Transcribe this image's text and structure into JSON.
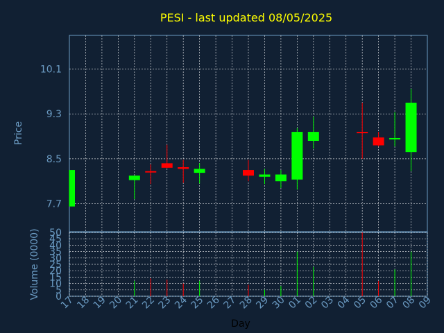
{
  "chart_data": {
    "type": "candlestick",
    "title": "PESI - last updated 08/05/2025",
    "xlabel": "Day",
    "price_panel": {
      "ylabel": "Price",
      "ylim": [
        7.2,
        10.7
      ],
      "yticks": [
        7.7,
        8.5,
        9.3,
        10.1
      ],
      "ytick_labels": [
        "7.7",
        "8.5",
        "9.3",
        "10.1"
      ]
    },
    "volume_panel": {
      "ylabel": "Volume (0000)",
      "ylim": [
        0,
        50
      ],
      "yticks": [
        0,
        5,
        10,
        15,
        20,
        25,
        30,
        35,
        40,
        45,
        50
      ],
      "ytick_labels": [
        "0",
        "5",
        "10",
        "15",
        "20",
        "25",
        "30",
        "35",
        "40",
        "45",
        "50"
      ]
    },
    "x_ticks": [
      "17",
      "18",
      "19",
      "20",
      "21",
      "22",
      "23",
      "24",
      "25",
      "26",
      "27",
      "28",
      "29",
      "30",
      "01",
      "02",
      "03",
      "04",
      "05",
      "06",
      "07",
      "08",
      "09"
    ],
    "grid": true,
    "colors": {
      "up": "#00ff00",
      "down": "#ff0000",
      "grid": "#ffffff",
      "axis_text": "#6b9bc3",
      "title": "#ffff00",
      "frame": "#6b9bc3"
    },
    "candles": [
      {
        "day": "17",
        "open": 7.65,
        "high": 8.3,
        "low": 7.65,
        "close": 8.3,
        "volume": 0
      },
      {
        "day": "21",
        "open": 8.12,
        "high": 8.2,
        "low": 7.78,
        "close": 8.2,
        "volume": 12
      },
      {
        "day": "22",
        "open": 8.28,
        "high": 8.4,
        "low": 8.05,
        "close": 8.26,
        "volume": 14
      },
      {
        "day": "23",
        "open": 8.42,
        "high": 8.75,
        "low": 8.33,
        "close": 8.34,
        "volume": 13
      },
      {
        "day": "24",
        "open": 8.35,
        "high": 8.48,
        "low": 8.07,
        "close": 8.32,
        "volume": 10
      },
      {
        "day": "25",
        "open": 8.25,
        "high": 8.42,
        "low": 8.06,
        "close": 8.32,
        "volume": 12
      },
      {
        "day": "28",
        "open": 8.3,
        "high": 8.48,
        "low": 8.1,
        "close": 8.2,
        "volume": 9
      },
      {
        "day": "29",
        "open": 8.18,
        "high": 8.32,
        "low": 8.05,
        "close": 8.22,
        "volume": 5
      },
      {
        "day": "30",
        "open": 8.1,
        "high": 8.3,
        "low": 7.98,
        "close": 8.22,
        "volume": 8
      },
      {
        "day": "01",
        "open": 8.13,
        "high": 9.05,
        "low": 7.95,
        "close": 8.98,
        "volume": 35
      },
      {
        "day": "02",
        "open": 8.82,
        "high": 9.25,
        "low": 8.68,
        "close": 8.98,
        "volume": 23
      },
      {
        "day": "05",
        "open": 8.98,
        "high": 9.5,
        "low": 8.5,
        "close": 8.97,
        "volume": 50
      },
      {
        "day": "06",
        "open": 8.88,
        "high": 8.98,
        "low": 8.72,
        "close": 8.74,
        "volume": 12
      },
      {
        "day": "07",
        "open": 8.85,
        "high": 9.33,
        "low": 8.72,
        "close": 8.87,
        "volume": 21
      },
      {
        "day": "08",
        "open": 8.62,
        "high": 9.75,
        "low": 8.28,
        "close": 9.5,
        "volume": 35
      }
    ]
  }
}
